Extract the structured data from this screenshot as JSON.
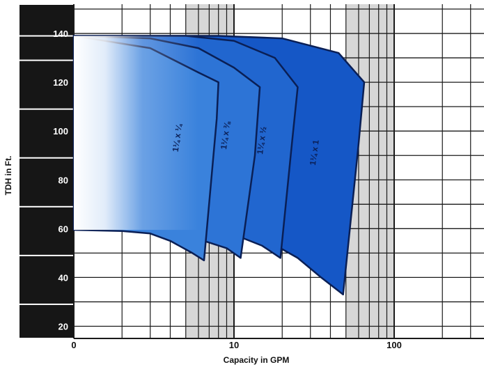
{
  "chart_data": {
    "type": "area",
    "title": "",
    "xlabel": "Capacity in GPM",
    "ylabel": "TDH in Ft.",
    "x_scale": "log",
    "xlim": [
      1,
      200
    ],
    "ylim": [
      15,
      152
    ],
    "x_ticks": [
      {
        "value": 1,
        "label": "0"
      },
      {
        "value": 10,
        "label": "10"
      },
      {
        "value": 100,
        "label": "100"
      }
    ],
    "y_ticks": [
      20,
      40,
      60,
      80,
      100,
      120,
      140
    ],
    "grid": true,
    "regions": [
      {
        "label": "1¼ x ¼",
        "color": "#3a82dc",
        "boundary": [
          [
            1,
            139
          ],
          [
            3,
            134
          ],
          [
            6,
            124
          ],
          [
            8,
            120
          ],
          [
            7.8,
            105
          ],
          [
            6.5,
            47
          ],
          [
            5.5,
            50
          ],
          [
            4,
            55
          ],
          [
            3,
            58
          ],
          [
            2,
            59
          ],
          [
            1,
            59.5
          ]
        ]
      },
      {
        "label": "1¼ x ⅜",
        "color": "#2d74d6",
        "boundary": [
          [
            1,
            139
          ],
          [
            3,
            138
          ],
          [
            6,
            134
          ],
          [
            10,
            126
          ],
          [
            14.5,
            118
          ],
          [
            13.5,
            90
          ],
          [
            11,
            48
          ],
          [
            9,
            52
          ],
          [
            6.5,
            55
          ]
        ]
      },
      {
        "label": "1¼ x ½",
        "color": "#2166cf",
        "boundary": [
          [
            1,
            139
          ],
          [
            5,
            139
          ],
          [
            10,
            137
          ],
          [
            18,
            130
          ],
          [
            25,
            118
          ],
          [
            23,
            95
          ],
          [
            19.5,
            48
          ],
          [
            15,
            53
          ],
          [
            11.5,
            56
          ]
        ]
      },
      {
        "label": "1¼ x 1",
        "color": "#1557c6",
        "boundary": [
          [
            1,
            139
          ],
          [
            8,
            139
          ],
          [
            20,
            138
          ],
          [
            45,
            132
          ],
          [
            65,
            120
          ],
          [
            60,
            95
          ],
          [
            48,
            33
          ],
          [
            35,
            40
          ],
          [
            25,
            48
          ],
          [
            19.5,
            52
          ]
        ]
      }
    ]
  }
}
